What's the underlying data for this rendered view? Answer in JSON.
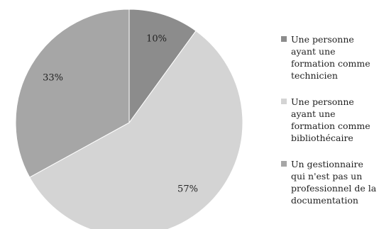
{
  "chart_data": {
    "type": "pie",
    "title": "",
    "start_angle_deg": 0,
    "direction": "clockwise",
    "slices": [
      {
        "label": "Une personne ayant une formation comme technicien",
        "value": 10,
        "value_label": "10%",
        "color": "#8c8c8c"
      },
      {
        "label": "Une personne ayant une formation comme bibliothécaire",
        "value": 57,
        "value_label": "57%",
        "color": "#d4d4d4"
      },
      {
        "label": "Un gestionnaire qui n'est pas un professionnel de la documentation",
        "value": 33,
        "value_label": "33%",
        "color": "#a6a6a6"
      }
    ],
    "legend_position": "right"
  }
}
